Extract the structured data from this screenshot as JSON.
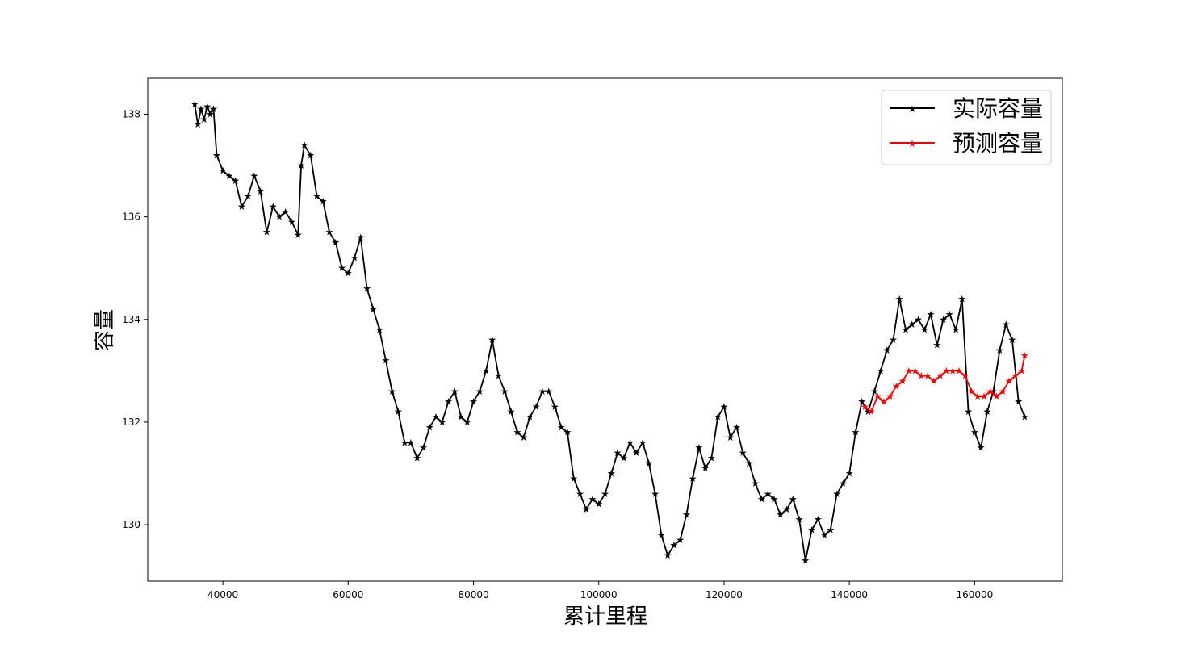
{
  "chart_data": {
    "type": "line",
    "title": "",
    "xlabel": "累计里程",
    "ylabel": "容量",
    "xlim": [
      28000,
      174000
    ],
    "ylim": [
      128.9,
      138.7
    ],
    "xticks": [
      40000,
      60000,
      80000,
      100000,
      120000,
      140000,
      160000
    ],
    "xtick_labels": [
      "40000",
      "60000",
      "80000",
      "100000",
      "120000",
      "140000",
      "160000"
    ],
    "yticks": [
      130,
      132,
      134,
      136,
      138
    ],
    "ytick_labels": [
      "130",
      "132",
      "134",
      "136",
      "138"
    ],
    "grid": false,
    "legend_position": "top-right",
    "marker": "star",
    "series": [
      {
        "name": "实际容量",
        "color": "#000000",
        "x": [
          35500,
          36000,
          36500,
          37000,
          37500,
          38000,
          38500,
          39000,
          40000,
          41000,
          42000,
          43000,
          44000,
          45000,
          46000,
          47000,
          48000,
          49000,
          50000,
          51000,
          52000,
          52500,
          53000,
          54000,
          55000,
          56000,
          57000,
          58000,
          59000,
          60000,
          61000,
          62000,
          63000,
          64000,
          65000,
          66000,
          67000,
          68000,
          69000,
          70000,
          71000,
          72000,
          73000,
          74000,
          75000,
          76000,
          77000,
          78000,
          79000,
          80000,
          81000,
          82000,
          83000,
          84000,
          85000,
          86000,
          87000,
          88000,
          89000,
          90000,
          91000,
          92000,
          93000,
          94000,
          95000,
          96000,
          97000,
          98000,
          99000,
          100000,
          101000,
          102000,
          103000,
          104000,
          105000,
          106000,
          107000,
          108000,
          109000,
          110000,
          111000,
          112000,
          113000,
          114000,
          115000,
          116000,
          117000,
          118000,
          119000,
          120000,
          121000,
          122000,
          123000,
          124000,
          125000,
          126000,
          127000,
          128000,
          129000,
          130000,
          131000,
          132000,
          133000,
          134000,
          135000,
          136000,
          137000,
          138000,
          139000,
          140000,
          141000,
          142000,
          143000,
          144000,
          145000,
          146000,
          147000,
          148000,
          149000,
          150000,
          151000,
          152000,
          153000,
          154000,
          155000,
          156000,
          157000,
          158000,
          159000,
          160000,
          161000,
          162000,
          163000,
          164000,
          165000,
          166000,
          167000,
          168000
        ],
        "y": [
          138.2,
          137.8,
          138.1,
          137.9,
          138.15,
          138.0,
          138.1,
          137.2,
          136.9,
          136.8,
          136.7,
          136.2,
          136.4,
          136.8,
          136.5,
          135.7,
          136.2,
          136.0,
          136.1,
          135.9,
          135.65,
          137.0,
          137.4,
          137.2,
          136.4,
          136.3,
          135.7,
          135.5,
          135.0,
          134.9,
          135.2,
          135.6,
          134.6,
          134.2,
          133.8,
          133.2,
          132.6,
          132.2,
          131.6,
          131.6,
          131.3,
          131.5,
          131.9,
          132.1,
          132.0,
          132.4,
          132.6,
          132.1,
          132.0,
          132.4,
          132.6,
          133.0,
          133.6,
          132.9,
          132.6,
          132.2,
          131.8,
          131.7,
          132.1,
          132.3,
          132.6,
          132.6,
          132.3,
          131.9,
          131.8,
          130.9,
          130.6,
          130.3,
          130.5,
          130.4,
          130.6,
          131.0,
          131.4,
          131.3,
          131.6,
          131.4,
          131.6,
          131.2,
          130.6,
          129.8,
          129.4,
          129.6,
          129.7,
          130.2,
          130.9,
          131.5,
          131.1,
          131.3,
          132.1,
          132.3,
          131.7,
          131.9,
          131.4,
          131.2,
          130.8,
          130.5,
          130.6,
          130.5,
          130.2,
          130.3,
          130.5,
          130.1,
          129.3,
          129.9,
          130.1,
          129.8,
          129.9,
          130.6,
          130.8,
          131.0,
          131.8,
          132.4,
          132.2,
          132.6,
          133.0,
          133.4,
          133.6,
          134.4,
          133.8,
          133.9,
          134.0,
          133.8,
          134.1,
          133.5,
          134.0,
          134.1,
          133.8,
          134.4,
          132.2,
          131.8,
          131.5,
          132.2,
          132.6,
          133.4,
          133.9,
          133.6,
          132.4,
          132.1
        ],
        "note_points": "approximate trace of a dense series"
      },
      {
        "name": "预测容量",
        "color": "#ff0000",
        "x": [
          142500,
          143500,
          144500,
          145500,
          146500,
          147500,
          148500,
          149500,
          150500,
          151500,
          152500,
          153500,
          154500,
          155500,
          156500,
          157500,
          158500,
          159500,
          160500,
          161500,
          162500,
          163500,
          164500,
          165500,
          166500,
          167500,
          168000
        ],
        "y": [
          132.3,
          132.2,
          132.5,
          132.4,
          132.5,
          132.7,
          132.8,
          133.0,
          133.0,
          132.9,
          132.9,
          132.8,
          132.9,
          133.0,
          133.0,
          133.0,
          132.9,
          132.6,
          132.5,
          132.5,
          132.6,
          132.5,
          132.6,
          132.8,
          132.9,
          133.0,
          133.3
        ]
      }
    ]
  }
}
